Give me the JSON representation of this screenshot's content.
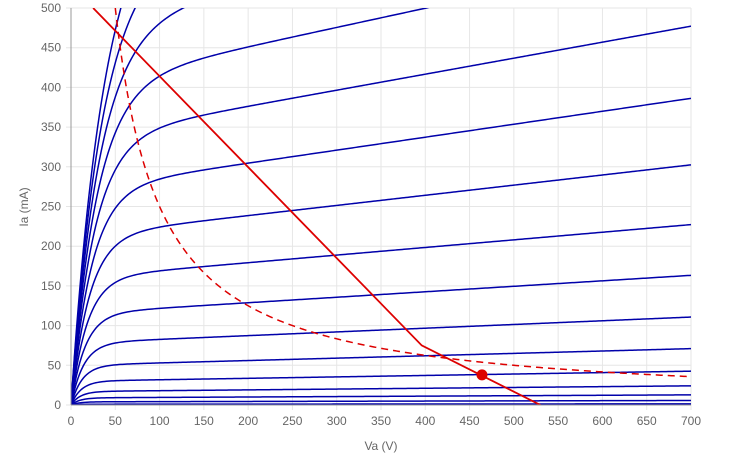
{
  "chart_data": {
    "type": "line",
    "xlabel": "Va (V)",
    "ylabel": "Ia (mA)",
    "xlim": [
      0,
      700
    ],
    "ylim": [
      0,
      500
    ],
    "x_ticks": [
      "0",
      "50",
      "100",
      "150",
      "200",
      "250",
      "300",
      "350",
      "400",
      "450",
      "500",
      "550",
      "600",
      "650",
      "700"
    ],
    "y_ticks": [
      "0",
      "50",
      "100",
      "150",
      "200",
      "250",
      "300",
      "350",
      "400",
      "450",
      "500"
    ],
    "grid": true,
    "colors": {
      "curves": "#0000aa",
      "load_line": "#dd0000",
      "dissipation": "#dd0000",
      "grid": "#e6e6e6",
      "axis": "#999999"
    },
    "characteristic_curves": [
      {
        "saturation": 1
      },
      {
        "saturation": 4
      },
      {
        "saturation": 9
      },
      {
        "saturation": 17
      },
      {
        "saturation": 30
      },
      {
        "saturation": 50
      },
      {
        "saturation": 78
      },
      {
        "saturation": 115
      },
      {
        "saturation": 160
      },
      {
        "saturation": 213
      },
      {
        "saturation": 272
      },
      {
        "saturation": 336
      },
      {
        "saturation": 403
      },
      {
        "saturation": 473
      },
      {
        "saturation": 545
      },
      {
        "saturation": 620
      }
    ],
    "load_line": {
      "x": [
        25,
        396,
        530
      ],
      "y": [
        500,
        75,
        0
      ]
    },
    "dissipation_curve": {
      "watts": 25,
      "x_start": 50,
      "x_end": 700
    },
    "operating_point": {
      "x": 464,
      "y": 38
    }
  }
}
